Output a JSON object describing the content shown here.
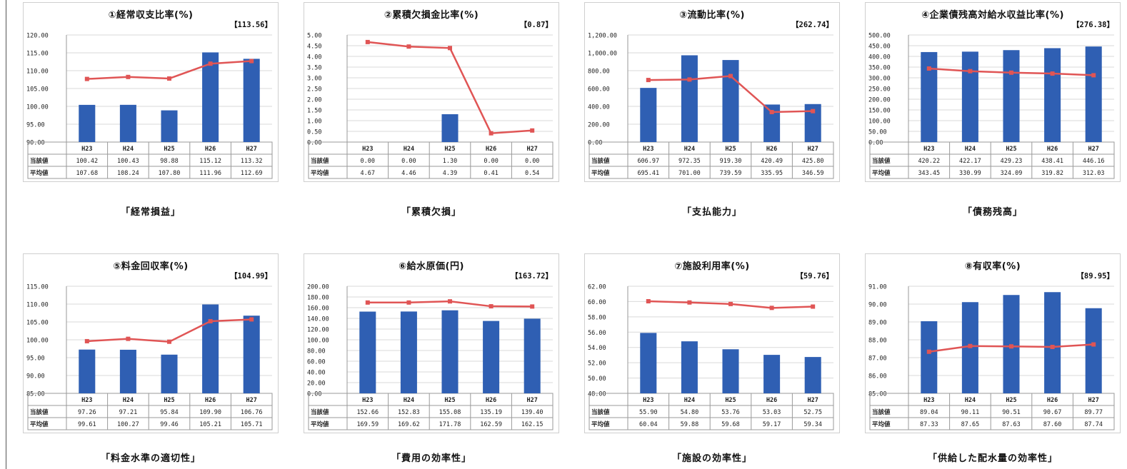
{
  "colors": {
    "bar": "#2f5fb3",
    "line": "#e05555",
    "grid": "#d9d9d9"
  },
  "row_label_current": "当該値",
  "row_label_average": "平均値",
  "chart_data": [
    {
      "type": "bar",
      "title": "①経常収支比率(%)",
      "bracket": "【113.56】",
      "caption": "「経常損益」",
      "categories": [
        "H23",
        "H24",
        "H25",
        "H26",
        "H27"
      ],
      "ylim": [
        90,
        120
      ],
      "yticks": [
        "120.00",
        "115.00",
        "110.00",
        "105.00",
        "100.00",
        "95.00",
        "90.00"
      ],
      "series": [
        {
          "name": "当該値",
          "kind": "bar",
          "values": [
            100.42,
            100.43,
            98.88,
            115.12,
            113.32
          ],
          "labels": [
            "100.42",
            "100.43",
            "98.88",
            "115.12",
            "113.32"
          ]
        },
        {
          "name": "平均値",
          "kind": "line",
          "values": [
            107.68,
            108.24,
            107.8,
            111.96,
            112.69
          ],
          "labels": [
            "107.68",
            "108.24",
            "107.80",
            "111.96",
            "112.69"
          ]
        }
      ],
      "grid": true
    },
    {
      "type": "bar",
      "title": "②累積欠損金比率(%)",
      "bracket": "【0.87】",
      "caption": "「累積欠損」",
      "categories": [
        "H23",
        "H24",
        "H25",
        "H26",
        "H27"
      ],
      "ylim": [
        0,
        5
      ],
      "yticks": [
        "5.00",
        "4.50",
        "4.00",
        "3.50",
        "3.00",
        "2.50",
        "2.00",
        "1.50",
        "1.00",
        "0.50",
        "0.00"
      ],
      "series": [
        {
          "name": "当該値",
          "kind": "bar",
          "values": [
            0.0,
            0.0,
            1.3,
            0.0,
            0.0
          ],
          "labels": [
            "0.00",
            "0.00",
            "1.30",
            "0.00",
            "0.00"
          ]
        },
        {
          "name": "平均値",
          "kind": "line",
          "values": [
            4.67,
            4.46,
            4.39,
            0.41,
            0.54
          ],
          "labels": [
            "4.67",
            "4.46",
            "4.39",
            "0.41",
            "0.54"
          ]
        }
      ],
      "grid": true
    },
    {
      "type": "bar",
      "title": "③流動比率(%)",
      "bracket": "【262.74】",
      "caption": "「支払能力」",
      "categories": [
        "H23",
        "H24",
        "H25",
        "H26",
        "H27"
      ],
      "ylim": [
        0,
        1200
      ],
      "yticks": [
        "1,200.00",
        "1,000.00",
        "800.00",
        "600.00",
        "400.00",
        "200.00",
        "0.00"
      ],
      "series": [
        {
          "name": "当該値",
          "kind": "bar",
          "values": [
            606.97,
            972.35,
            919.3,
            420.49,
            425.8
          ],
          "labels": [
            "606.97",
            "972.35",
            "919.30",
            "420.49",
            "425.80"
          ]
        },
        {
          "name": "平均値",
          "kind": "line",
          "values": [
            695.41,
            701.0,
            739.59,
            335.95,
            346.59
          ],
          "labels": [
            "695.41",
            "701.00",
            "739.59",
            "335.95",
            "346.59"
          ]
        }
      ],
      "grid": true
    },
    {
      "type": "bar",
      "title": "④企業債残高対給水収益比率(%)",
      "bracket": "【276.38】",
      "caption": "「債務残高」",
      "categories": [
        "H23",
        "H24",
        "H25",
        "H26",
        "H27"
      ],
      "ylim": [
        0,
        500
      ],
      "yticks": [
        "500.00",
        "450.00",
        "400.00",
        "350.00",
        "300.00",
        "250.00",
        "200.00",
        "150.00",
        "100.00",
        "50.00",
        "0.00"
      ],
      "series": [
        {
          "name": "当該値",
          "kind": "bar",
          "values": [
            420.22,
            422.17,
            429.23,
            438.41,
            446.16
          ],
          "labels": [
            "420.22",
            "422.17",
            "429.23",
            "438.41",
            "446.16"
          ]
        },
        {
          "name": "平均値",
          "kind": "line",
          "values": [
            343.45,
            330.99,
            324.09,
            319.82,
            312.03
          ],
          "labels": [
            "343.45",
            "330.99",
            "324.09",
            "319.82",
            "312.03"
          ]
        }
      ],
      "grid": true
    },
    {
      "type": "bar",
      "title": "⑤料金回収率(%)",
      "bracket": "【104.99】",
      "caption": "「料金水準の適切性」",
      "categories": [
        "H23",
        "H24",
        "H25",
        "H26",
        "H27"
      ],
      "ylim": [
        85,
        115
      ],
      "yticks": [
        "115.00",
        "110.00",
        "105.00",
        "100.00",
        "95.00",
        "90.00",
        "85.00"
      ],
      "series": [
        {
          "name": "当該値",
          "kind": "bar",
          "values": [
            97.26,
            97.21,
            95.84,
            109.9,
            106.76
          ],
          "labels": [
            "97.26",
            "97.21",
            "95.84",
            "109.90",
            "106.76"
          ]
        },
        {
          "name": "平均値",
          "kind": "line",
          "values": [
            99.61,
            100.27,
            99.46,
            105.21,
            105.71
          ],
          "labels": [
            "99.61",
            "100.27",
            "99.46",
            "105.21",
            "105.71"
          ]
        }
      ],
      "grid": true
    },
    {
      "type": "bar",
      "title": "⑥給水原価(円)",
      "bracket": "【163.72】",
      "caption": "「費用の効率性」",
      "categories": [
        "H23",
        "H24",
        "H25",
        "H26",
        "H27"
      ],
      "ylim": [
        0,
        200
      ],
      "yticks": [
        "200.00",
        "180.00",
        "160.00",
        "140.00",
        "120.00",
        "100.00",
        "80.00",
        "60.00",
        "40.00",
        "20.00",
        "0.00"
      ],
      "series": [
        {
          "name": "当該値",
          "kind": "bar",
          "values": [
            152.66,
            152.83,
            155.08,
            135.19,
            139.4
          ],
          "labels": [
            "152.66",
            "152.83",
            "155.08",
            "135.19",
            "139.40"
          ]
        },
        {
          "name": "平均値",
          "kind": "line",
          "values": [
            169.59,
            169.62,
            171.78,
            162.59,
            162.15
          ],
          "labels": [
            "169.59",
            "169.62",
            "171.78",
            "162.59",
            "162.15"
          ]
        }
      ],
      "grid": true
    },
    {
      "type": "bar",
      "title": "⑦施設利用率(%)",
      "bracket": "【59.76】",
      "caption": "「施設の効率性」",
      "categories": [
        "H23",
        "H24",
        "H25",
        "H26",
        "H27"
      ],
      "ylim": [
        48,
        62
      ],
      "yticks": [
        "62.00",
        "60.00",
        "58.00",
        "56.00",
        "54.00",
        "52.00",
        "50.00",
        "48.00"
      ],
      "series": [
        {
          "name": "当該値",
          "kind": "bar",
          "values": [
            55.9,
            54.8,
            53.76,
            53.03,
            52.75
          ],
          "labels": [
            "55.90",
            "54.80",
            "53.76",
            "53.03",
            "52.75"
          ]
        },
        {
          "name": "平均値",
          "kind": "line",
          "values": [
            60.04,
            59.88,
            59.68,
            59.17,
            59.34
          ],
          "labels": [
            "60.04",
            "59.88",
            "59.68",
            "59.17",
            "59.34"
          ]
        }
      ],
      "grid": true
    },
    {
      "type": "bar",
      "title": "⑧有収率(%)",
      "bracket": "【89.95】",
      "caption": "「供給した配水量の効率性」",
      "categories": [
        "H23",
        "H24",
        "H25",
        "H26",
        "H27"
      ],
      "ylim": [
        85,
        91
      ],
      "yticks": [
        "91.00",
        "90.00",
        "89.00",
        "88.00",
        "87.00",
        "86.00",
        "85.00"
      ],
      "series": [
        {
          "name": "当該値",
          "kind": "bar",
          "values": [
            89.04,
            90.11,
            90.51,
            90.67,
            89.77
          ],
          "labels": [
            "89.04",
            "90.11",
            "90.51",
            "90.67",
            "89.77"
          ]
        },
        {
          "name": "平均値",
          "kind": "line",
          "values": [
            87.33,
            87.65,
            87.63,
            87.6,
            87.74
          ],
          "labels": [
            "87.33",
            "87.65",
            "87.63",
            "87.60",
            "87.74"
          ]
        }
      ],
      "grid": true
    }
  ]
}
